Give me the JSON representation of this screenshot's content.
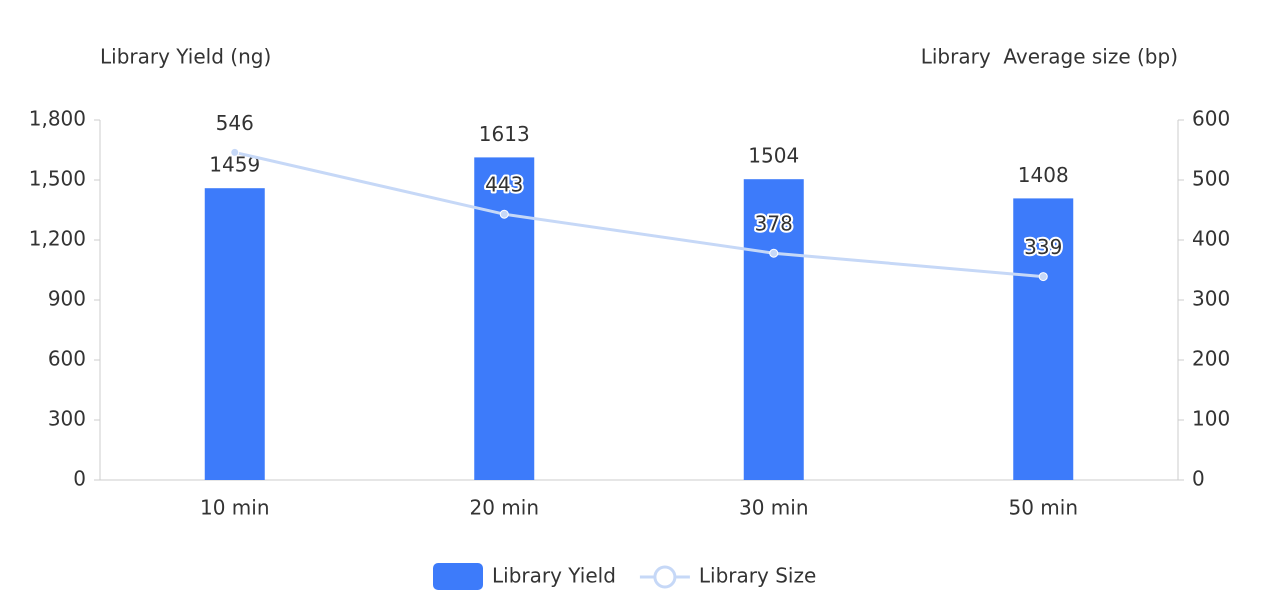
{
  "chart_data": {
    "type": "bar_line",
    "y_label": "Library Yield (ng)",
    "y2_label": "Library  Average size (bp)",
    "categories": [
      "10 min",
      "20 min",
      "30 min",
      "50 min"
    ],
    "series": [
      {
        "name": "Library Yield",
        "type": "bar",
        "color": "#3d7bfa",
        "values": [
          1459,
          1613,
          1504,
          1408
        ]
      },
      {
        "name": "Library Size",
        "type": "line",
        "axis": "y2",
        "color": "#c6d8f7",
        "values": [
          546,
          443,
          378,
          339
        ]
      }
    ],
    "ylim": [
      0,
      1800
    ],
    "yticks": [
      0,
      300,
      600,
      900,
      {
        "value": 1200,
        "label": "1,200"
      },
      {
        "value": 1500,
        "label": "1,500"
      },
      {
        "value": 1800,
        "label": "1,800"
      }
    ],
    "y2lim": [
      0,
      600
    ],
    "y2ticks": [
      0,
      100,
      200,
      300,
      400,
      500,
      600
    ],
    "grid": false,
    "legend": "bottom"
  }
}
